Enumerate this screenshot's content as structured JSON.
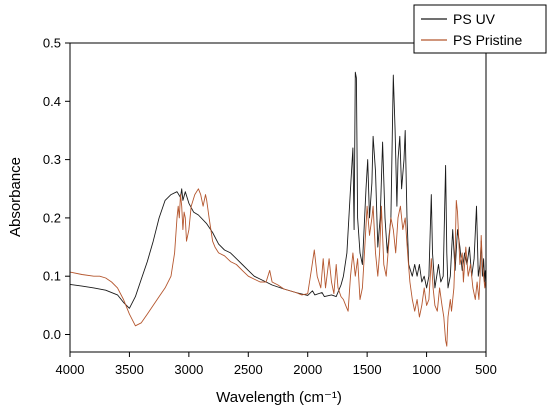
{
  "chart_data": {
    "type": "line",
    "xlabel": "Wavelength (cm⁻¹)",
    "ylabel": "Absorbance",
    "xlim": [
      4000,
      500
    ],
    "x_reversed": true,
    "ylim": [
      -0.03,
      0.5
    ],
    "x_ticks": [
      4000,
      3500,
      3000,
      2500,
      2000,
      1500,
      1000,
      500
    ],
    "y_ticks": [
      "0.0",
      "0.1",
      "0.2",
      "0.3",
      "0.4",
      "0.5"
    ],
    "grid": false,
    "legend_position": "top-right",
    "series": [
      {
        "name": "PS UV",
        "color": "#1a1a1a",
        "points": [
          [
            4000,
            0.086
          ],
          [
            3900,
            0.083
          ],
          [
            3800,
            0.08
          ],
          [
            3700,
            0.076
          ],
          [
            3600,
            0.068
          ],
          [
            3550,
            0.055
          ],
          [
            3500,
            0.045
          ],
          [
            3450,
            0.065
          ],
          [
            3400,
            0.095
          ],
          [
            3350,
            0.125
          ],
          [
            3300,
            0.16
          ],
          [
            3250,
            0.2
          ],
          [
            3200,
            0.23
          ],
          [
            3150,
            0.24
          ],
          [
            3100,
            0.245
          ],
          [
            3070,
            0.235
          ],
          [
            3060,
            0.25
          ],
          [
            3050,
            0.23
          ],
          [
            3030,
            0.245
          ],
          [
            3000,
            0.225
          ],
          [
            2960,
            0.21
          ],
          [
            2920,
            0.205
          ],
          [
            2850,
            0.19
          ],
          [
            2800,
            0.175
          ],
          [
            2750,
            0.155
          ],
          [
            2700,
            0.145
          ],
          [
            2650,
            0.14
          ],
          [
            2600,
            0.13
          ],
          [
            2550,
            0.12
          ],
          [
            2500,
            0.11
          ],
          [
            2450,
            0.1
          ],
          [
            2400,
            0.095
          ],
          [
            2350,
            0.09
          ],
          [
            2300,
            0.085
          ],
          [
            2200,
            0.078
          ],
          [
            2100,
            0.072
          ],
          [
            2000,
            0.067
          ],
          [
            1960,
            0.075
          ],
          [
            1940,
            0.068
          ],
          [
            1880,
            0.072
          ],
          [
            1860,
            0.065
          ],
          [
            1800,
            0.068
          ],
          [
            1760,
            0.065
          ],
          [
            1720,
            0.085
          ],
          [
            1700,
            0.1
          ],
          [
            1670,
            0.14
          ],
          [
            1640,
            0.25
          ],
          [
            1620,
            0.32
          ],
          [
            1610,
            0.18
          ],
          [
            1600,
            0.45
          ],
          [
            1590,
            0.44
          ],
          [
            1580,
            0.2
          ],
          [
            1560,
            0.14
          ],
          [
            1540,
            0.12
          ],
          [
            1510,
            0.25
          ],
          [
            1495,
            0.3
          ],
          [
            1480,
            0.2
          ],
          [
            1460,
            0.26
          ],
          [
            1450,
            0.34
          ],
          [
            1430,
            0.28
          ],
          [
            1410,
            0.15
          ],
          [
            1390,
            0.2
          ],
          [
            1370,
            0.33
          ],
          [
            1350,
            0.2
          ],
          [
            1330,
            0.14
          ],
          [
            1300,
            0.2
          ],
          [
            1280,
            0.445
          ],
          [
            1265,
            0.35
          ],
          [
            1250,
            0.22
          ],
          [
            1240,
            0.3
          ],
          [
            1225,
            0.34
          ],
          [
            1210,
            0.25
          ],
          [
            1190,
            0.3
          ],
          [
            1180,
            0.35
          ],
          [
            1165,
            0.2
          ],
          [
            1150,
            0.12
          ],
          [
            1120,
            0.1
          ],
          [
            1100,
            0.12
          ],
          [
            1080,
            0.1
          ],
          [
            1060,
            0.12
          ],
          [
            1040,
            0.09
          ],
          [
            1020,
            0.1
          ],
          [
            1000,
            0.08
          ],
          [
            980,
            0.1
          ],
          [
            960,
            0.24
          ],
          [
            950,
            0.14
          ],
          [
            930,
            0.08
          ],
          [
            900,
            0.12
          ],
          [
            880,
            0.09
          ],
          [
            860,
            0.1
          ],
          [
            840,
            0.29
          ],
          [
            830,
            0.14
          ],
          [
            820,
            0.08
          ],
          [
            800,
            0.1
          ],
          [
            780,
            0.18
          ],
          [
            760,
            0.11
          ],
          [
            740,
            0.18
          ],
          [
            720,
            0.15
          ],
          [
            700,
            0.11
          ],
          [
            680,
            0.14
          ],
          [
            660,
            0.12
          ],
          [
            640,
            0.15
          ],
          [
            620,
            0.1
          ],
          [
            600,
            0.13
          ],
          [
            580,
            0.22
          ],
          [
            565,
            0.1
          ],
          [
            550,
            0.12
          ],
          [
            540,
            0.16
          ],
          [
            530,
            0.1
          ],
          [
            520,
            0.13
          ],
          [
            510,
            0.09
          ],
          [
            505,
            0.11
          ]
        ]
      },
      {
        "name": "PS Pristine",
        "color": "#b5572f",
        "points": [
          [
            4000,
            0.107
          ],
          [
            3900,
            0.103
          ],
          [
            3800,
            0.1
          ],
          [
            3750,
            0.1
          ],
          [
            3700,
            0.097
          ],
          [
            3650,
            0.09
          ],
          [
            3600,
            0.08
          ],
          [
            3550,
            0.06
          ],
          [
            3500,
            0.035
          ],
          [
            3450,
            0.015
          ],
          [
            3400,
            0.02
          ],
          [
            3350,
            0.035
          ],
          [
            3300,
            0.05
          ],
          [
            3250,
            0.065
          ],
          [
            3200,
            0.08
          ],
          [
            3150,
            0.1
          ],
          [
            3120,
            0.14
          ],
          [
            3100,
            0.2
          ],
          [
            3090,
            0.22
          ],
          [
            3080,
            0.2
          ],
          [
            3070,
            0.24
          ],
          [
            3060,
            0.22
          ],
          [
            3050,
            0.18
          ],
          [
            3040,
            0.21
          ],
          [
            3030,
            0.2
          ],
          [
            3020,
            0.16
          ],
          [
            3000,
            0.18
          ],
          [
            2980,
            0.22
          ],
          [
            2950,
            0.24
          ],
          [
            2920,
            0.25
          ],
          [
            2900,
            0.24
          ],
          [
            2880,
            0.22
          ],
          [
            2860,
            0.24
          ],
          [
            2850,
            0.23
          ],
          [
            2830,
            0.2
          ],
          [
            2800,
            0.16
          ],
          [
            2780,
            0.15
          ],
          [
            2750,
            0.14
          ],
          [
            2700,
            0.135
          ],
          [
            2650,
            0.125
          ],
          [
            2600,
            0.12
          ],
          [
            2550,
            0.11
          ],
          [
            2500,
            0.1
          ],
          [
            2450,
            0.095
          ],
          [
            2400,
            0.09
          ],
          [
            2350,
            0.09
          ],
          [
            2320,
            0.11
          ],
          [
            2300,
            0.09
          ],
          [
            2250,
            0.085
          ],
          [
            2200,
            0.078
          ],
          [
            2100,
            0.072
          ],
          [
            2050,
            0.068
          ],
          [
            2000,
            0.07
          ],
          [
            1970,
            0.11
          ],
          [
            1945,
            0.145
          ],
          [
            1920,
            0.1
          ],
          [
            1890,
            0.08
          ],
          [
            1870,
            0.13
          ],
          [
            1850,
            0.08
          ],
          [
            1820,
            0.13
          ],
          [
            1800,
            0.09
          ],
          [
            1780,
            0.07
          ],
          [
            1760,
            0.12
          ],
          [
            1745,
            0.08
          ],
          [
            1720,
            0.065
          ],
          [
            1700,
            0.06
          ],
          [
            1680,
            0.05
          ],
          [
            1660,
            0.04
          ],
          [
            1640,
            0.1
          ],
          [
            1620,
            0.14
          ],
          [
            1600,
            0.1
          ],
          [
            1580,
            0.13
          ],
          [
            1560,
            0.06
          ],
          [
            1540,
            0.08
          ],
          [
            1520,
            0.15
          ],
          [
            1500,
            0.22
          ],
          [
            1480,
            0.17
          ],
          [
            1460,
            0.2
          ],
          [
            1450,
            0.22
          ],
          [
            1430,
            0.14
          ],
          [
            1410,
            0.1
          ],
          [
            1395,
            0.14
          ],
          [
            1380,
            0.22
          ],
          [
            1360,
            0.12
          ],
          [
            1340,
            0.1
          ],
          [
            1320,
            0.15
          ],
          [
            1300,
            0.2
          ],
          [
            1280,
            0.18
          ],
          [
            1260,
            0.14
          ],
          [
            1240,
            0.2
          ],
          [
            1220,
            0.22
          ],
          [
            1200,
            0.18
          ],
          [
            1180,
            0.2
          ],
          [
            1160,
            0.14
          ],
          [
            1140,
            0.09
          ],
          [
            1120,
            0.06
          ],
          [
            1100,
            0.04
          ],
          [
            1080,
            0.06
          ],
          [
            1060,
            0.03
          ],
          [
            1040,
            0.05
          ],
          [
            1020,
            0.08
          ],
          [
            1000,
            0.05
          ],
          [
            980,
            0.06
          ],
          [
            960,
            0.13
          ],
          [
            945,
            0.08
          ],
          [
            930,
            0.05
          ],
          [
            910,
            0.04
          ],
          [
            890,
            0.08
          ],
          [
            870,
            0.05
          ],
          [
            855,
            0.03
          ],
          [
            840,
            -0.01
          ],
          [
            830,
            -0.02
          ],
          [
            820,
            0.03
          ],
          [
            800,
            0.06
          ],
          [
            790,
            0.04
          ],
          [
            770,
            0.08
          ],
          [
            760,
            0.14
          ],
          [
            750,
            0.23
          ],
          [
            740,
            0.21
          ],
          [
            720,
            0.12
          ],
          [
            700,
            0.14
          ],
          [
            690,
            0.09
          ],
          [
            670,
            0.15
          ],
          [
            650,
            0.1
          ],
          [
            630,
            0.12
          ],
          [
            610,
            0.08
          ],
          [
            590,
            0.06
          ],
          [
            575,
            0.09
          ],
          [
            560,
            0.06
          ],
          [
            550,
            0.1
          ],
          [
            540,
            0.17
          ],
          [
            530,
            0.12
          ],
          [
            520,
            0.1
          ],
          [
            510,
            0.08
          ],
          [
            505,
            0.09
          ]
        ]
      }
    ]
  }
}
